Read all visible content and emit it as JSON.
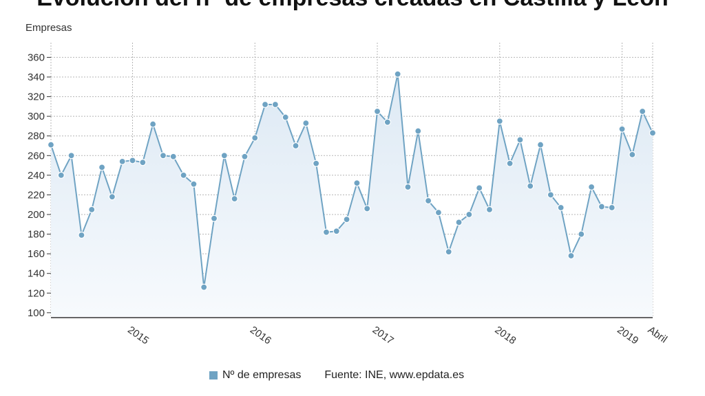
{
  "title": "Evolución del nº de empresas creadas en Castilla y León",
  "source": "Fuente: INE, www.epdata.es",
  "colors": {
    "line": "#6fa3c3",
    "marker": "#6fa3c3",
    "marker_stroke": "#ffffff",
    "area_top": "#dde9f4",
    "area_bottom": "#f7fafd",
    "grid": "#b5b5b5",
    "axis": "#333333"
  },
  "chart_data": {
    "type": "area",
    "ylabel": "Empresas",
    "xlabel": "",
    "ylim": [
      95,
      375
    ],
    "yticks": [
      100,
      120,
      140,
      160,
      180,
      200,
      220,
      240,
      260,
      280,
      300,
      320,
      340,
      360
    ],
    "grid": true,
    "x_start": "2014-05",
    "x_end": "2019-04",
    "x_ticks": [
      {
        "label": "2015",
        "date": "2015-01"
      },
      {
        "label": "2016",
        "date": "2016-01"
      },
      {
        "label": "2017",
        "date": "2017-01"
      },
      {
        "label": "2018",
        "date": "2018-01"
      },
      {
        "label": "2019",
        "date": "2019-01"
      },
      {
        "label": "Abril",
        "date": "2019-04"
      }
    ],
    "series": [
      {
        "name": "Nº de empresas",
        "x": [
          "2014-05",
          "2014-06",
          "2014-07",
          "2014-08",
          "2014-09",
          "2014-10",
          "2014-11",
          "2014-12",
          "2015-01",
          "2015-02",
          "2015-03",
          "2015-04",
          "2015-05",
          "2015-06",
          "2015-07",
          "2015-08",
          "2015-09",
          "2015-10",
          "2015-11",
          "2015-12",
          "2016-01",
          "2016-02",
          "2016-03",
          "2016-04",
          "2016-05",
          "2016-06",
          "2016-07",
          "2016-08",
          "2016-09",
          "2016-10",
          "2016-11",
          "2016-12",
          "2017-01",
          "2017-02",
          "2017-03",
          "2017-04",
          "2017-05",
          "2017-06",
          "2017-07",
          "2017-08",
          "2017-09",
          "2017-10",
          "2017-11",
          "2017-12",
          "2018-01",
          "2018-02",
          "2018-03",
          "2018-04",
          "2018-05",
          "2018-06",
          "2018-07",
          "2018-08",
          "2018-09",
          "2018-10",
          "2018-11",
          "2018-12",
          "2019-01",
          "2019-02",
          "2019-03",
          "2019-04"
        ],
        "values": [
          271,
          240,
          260,
          179,
          205,
          248,
          218,
          254,
          255,
          253,
          292,
          260,
          259,
          240,
          231,
          126,
          196,
          260,
          216,
          259,
          278,
          312,
          312,
          299,
          270,
          293,
          252,
          182,
          183,
          195,
          232,
          206,
          305,
          294,
          343,
          228,
          285,
          214,
          202,
          162,
          192,
          200,
          227,
          205,
          295,
          252,
          276,
          229,
          271,
          220,
          207,
          158,
          180,
          228,
          208,
          207,
          287,
          261,
          305,
          283
        ]
      }
    ],
    "legend": "bottom"
  }
}
